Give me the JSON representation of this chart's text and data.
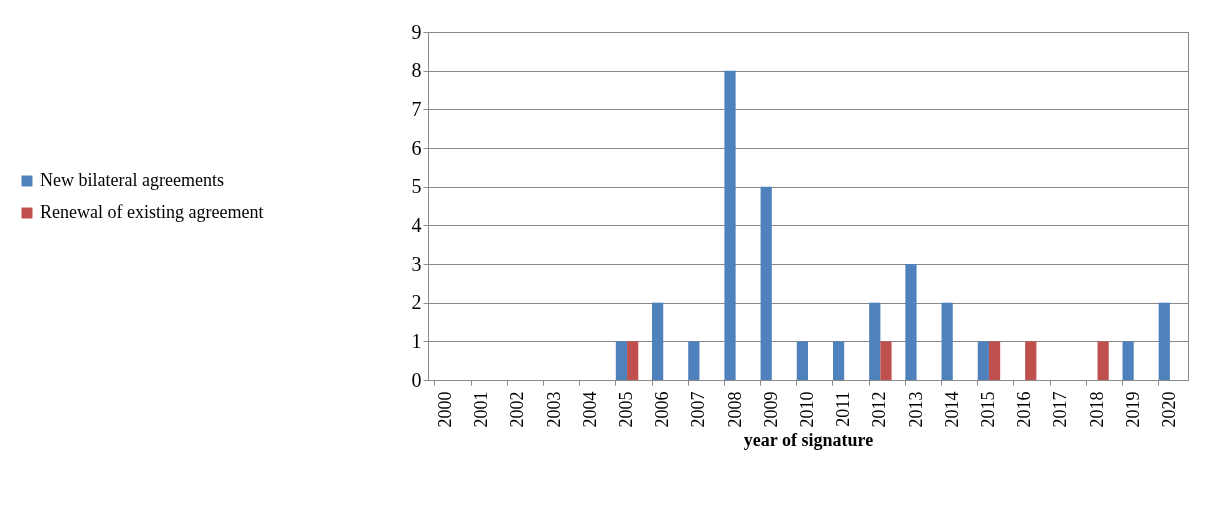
{
  "chart_data": {
    "type": "bar",
    "xlabel": "year of signature",
    "categories": [
      "2000",
      "2001",
      "2002",
      "2003",
      "2004",
      "2005",
      "2006",
      "2007",
      "2008",
      "2009",
      "2010",
      "2011",
      "2012",
      "2013",
      "2014",
      "2015",
      "2016",
      "2017",
      "2018",
      "2019",
      "2020"
    ],
    "series": [
      {
        "name": "New bilateral agreements",
        "color": "#4f81bd",
        "values": [
          0,
          0,
          0,
          0,
          0,
          1,
          2,
          1,
          8,
          5,
          1,
          1,
          2,
          3,
          2,
          1,
          0,
          0,
          0,
          1,
          2
        ]
      },
      {
        "name": "Renewal of existing agreement",
        "color": "#c0504d",
        "values": [
          0,
          0,
          0,
          0,
          0,
          1,
          0,
          0,
          0,
          0,
          0,
          0,
          1,
          0,
          0,
          1,
          1,
          0,
          1,
          0,
          0
        ]
      }
    ],
    "ylim": [
      0,
      9
    ],
    "yticks": [
      0,
      1,
      2,
      3,
      4,
      5,
      6,
      7,
      8,
      9
    ],
    "grid": "y",
    "legend": "left"
  }
}
